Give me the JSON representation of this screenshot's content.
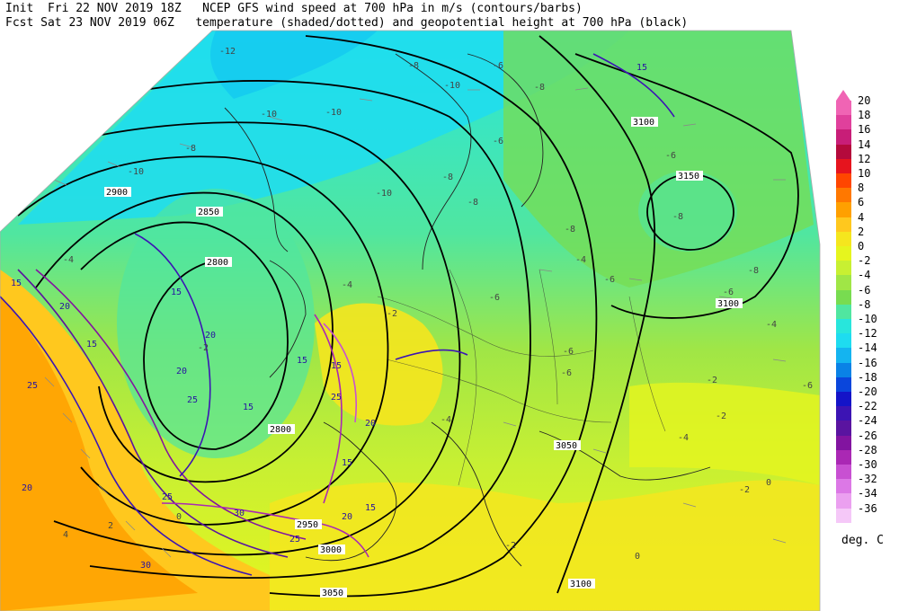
{
  "header": {
    "init_label": "Init",
    "init_time": "Fri 22 NOV 2019 18Z",
    "fcst_label": "Fcst",
    "fcst_time": "Sat 23 NOV 2019 06Z",
    "title_line1": "NCEP GFS wind speed at 700 hPa in m/s (contours/barbs)",
    "title_line2": "temperature (shaded/dotted) and geopotential height at 700 hPa (black)"
  },
  "legend": {
    "units": "deg. C",
    "entries": [
      {
        "label": "20",
        "color": "#f064b4"
      },
      {
        "label": "18",
        "color": "#e0409c"
      },
      {
        "label": "16",
        "color": "#c81e78"
      },
      {
        "label": "14",
        "color": "#b40a3c"
      },
      {
        "label": "12",
        "color": "#e6141e"
      },
      {
        "label": "10",
        "color": "#ff4600"
      },
      {
        "label": "8",
        "color": "#ff7800"
      },
      {
        "label": "6",
        "color": "#ffa000"
      },
      {
        "label": "4",
        "color": "#ffc81e"
      },
      {
        "label": "2",
        "color": "#f5e61e"
      },
      {
        "label": "0",
        "color": "#e6f51e"
      },
      {
        "label": "-2",
        "color": "#c8f032"
      },
      {
        "label": "-4",
        "color": "#a0e646"
      },
      {
        "label": "-6",
        "color": "#78dc50"
      },
      {
        "label": "-8",
        "color": "#50e6a0"
      },
      {
        "label": "-10",
        "color": "#28e6dc"
      },
      {
        "label": "-12",
        "color": "#1edcf0"
      },
      {
        "label": "-14",
        "color": "#14b4f0"
      },
      {
        "label": "-16",
        "color": "#0a82e6"
      },
      {
        "label": "-18",
        "color": "#0a46dc"
      },
      {
        "label": "-20",
        "color": "#1414c8"
      },
      {
        "label": "-22",
        "color": "#3c14b4"
      },
      {
        "label": "-24",
        "color": "#5a14a0"
      },
      {
        "label": "-26",
        "color": "#8214a0"
      },
      {
        "label": "-28",
        "color": "#aa28b4"
      },
      {
        "label": "-30",
        "color": "#c850d2"
      },
      {
        "label": "-32",
        "color": "#dc78e6"
      },
      {
        "label": "-34",
        "color": "#eba0f0"
      },
      {
        "label": "-36",
        "color": "#f5c8f8"
      }
    ]
  },
  "map_labels": {
    "height_contours": [
      {
        "text": "2800",
        "kind": "height"
      },
      {
        "text": "2850",
        "kind": "height"
      },
      {
        "text": "2900",
        "kind": "height"
      },
      {
        "text": "2800",
        "kind": "height"
      },
      {
        "text": "2950",
        "kind": "height"
      },
      {
        "text": "3000",
        "kind": "height"
      },
      {
        "text": "3050",
        "kind": "height"
      },
      {
        "text": "3050",
        "kind": "height"
      },
      {
        "text": "3100",
        "kind": "height"
      },
      {
        "text": "3100",
        "kind": "height"
      },
      {
        "text": "3100",
        "kind": "height"
      },
      {
        "text": "3150",
        "kind": "height"
      }
    ],
    "wind_contours": [
      {
        "text": "15"
      },
      {
        "text": "15"
      },
      {
        "text": "20"
      },
      {
        "text": "20"
      },
      {
        "text": "25"
      },
      {
        "text": "20"
      },
      {
        "text": "15"
      },
      {
        "text": "20"
      },
      {
        "text": "25"
      },
      {
        "text": "25"
      },
      {
        "text": "15"
      },
      {
        "text": "15"
      },
      {
        "text": "20"
      },
      {
        "text": "15"
      },
      {
        "text": "25"
      },
      {
        "text": "30"
      },
      {
        "text": "15"
      },
      {
        "text": "15"
      },
      {
        "text": "20"
      },
      {
        "text": "25"
      },
      {
        "text": "30"
      },
      {
        "text": "15"
      }
    ],
    "temperature": [
      {
        "text": "-12"
      },
      {
        "text": "-10"
      },
      {
        "text": "-10"
      },
      {
        "text": "-8"
      },
      {
        "text": "-10"
      },
      {
        "text": "-10"
      },
      {
        "text": "-8"
      },
      {
        "text": "-8"
      },
      {
        "text": "-8"
      },
      {
        "text": "-6"
      },
      {
        "text": "-6"
      },
      {
        "text": "-8"
      },
      {
        "text": "-6"
      },
      {
        "text": "-6"
      },
      {
        "text": "-4"
      },
      {
        "text": "-2"
      },
      {
        "text": "-6"
      },
      {
        "text": "-6"
      },
      {
        "text": "-4"
      },
      {
        "text": "-2"
      },
      {
        "text": "-4"
      },
      {
        "text": "-2"
      },
      {
        "text": "-6"
      },
      {
        "text": "-8"
      },
      {
        "text": "-10"
      },
      {
        "text": "-8"
      },
      {
        "text": "-4"
      },
      {
        "text": "-2"
      },
      {
        "text": "0"
      },
      {
        "text": "-2"
      },
      {
        "text": "4"
      },
      {
        "text": "2"
      },
      {
        "text": "0"
      },
      {
        "text": "-2"
      },
      {
        "text": "-4"
      },
      {
        "text": "-4"
      },
      {
        "text": "0"
      },
      {
        "text": "-6"
      },
      {
        "text": "-6"
      },
      {
        "text": "-8"
      }
    ]
  }
}
